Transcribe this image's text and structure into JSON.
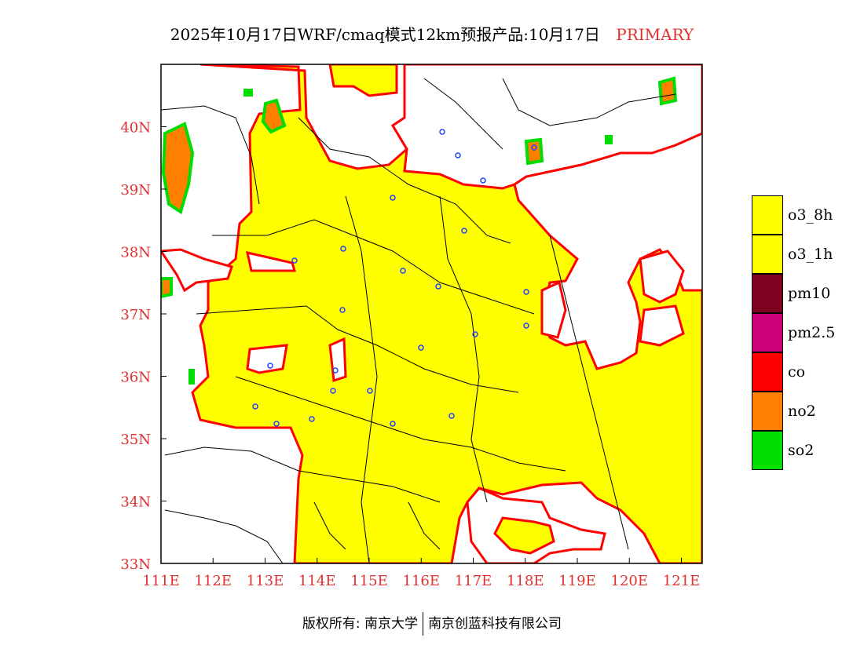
{
  "title": {
    "main": "2025年10月17日WRF/cmaq模式12km预报产品:10月17日",
    "tag": "PRIMARY"
  },
  "map": {
    "lon_ticks": [
      "111E",
      "112E",
      "113E",
      "114E",
      "115E",
      "116E",
      "117E",
      "118E",
      "119E",
      "120E",
      "121E"
    ],
    "lat_ticks": [
      "33N",
      "34N",
      "35N",
      "36N",
      "37N",
      "38N",
      "39N",
      "40N"
    ],
    "axis_color": "#e03030",
    "stations": 24
  },
  "legend": [
    {
      "label": "o3_8h",
      "color": "#ffff00"
    },
    {
      "label": "o3_1h",
      "color": "#ffff00"
    },
    {
      "label": "pm10",
      "color": "#800020"
    },
    {
      "label": "pm2.5",
      "color": "#cc0077"
    },
    {
      "label": "co",
      "color": "#ff0000"
    },
    {
      "label": "no2",
      "color": "#ff8000"
    },
    {
      "label": "so2",
      "color": "#00dd00"
    }
  ],
  "footer": {
    "left": "版权所有: 南京大学",
    "right": "南京创蓝科技有限公司"
  }
}
